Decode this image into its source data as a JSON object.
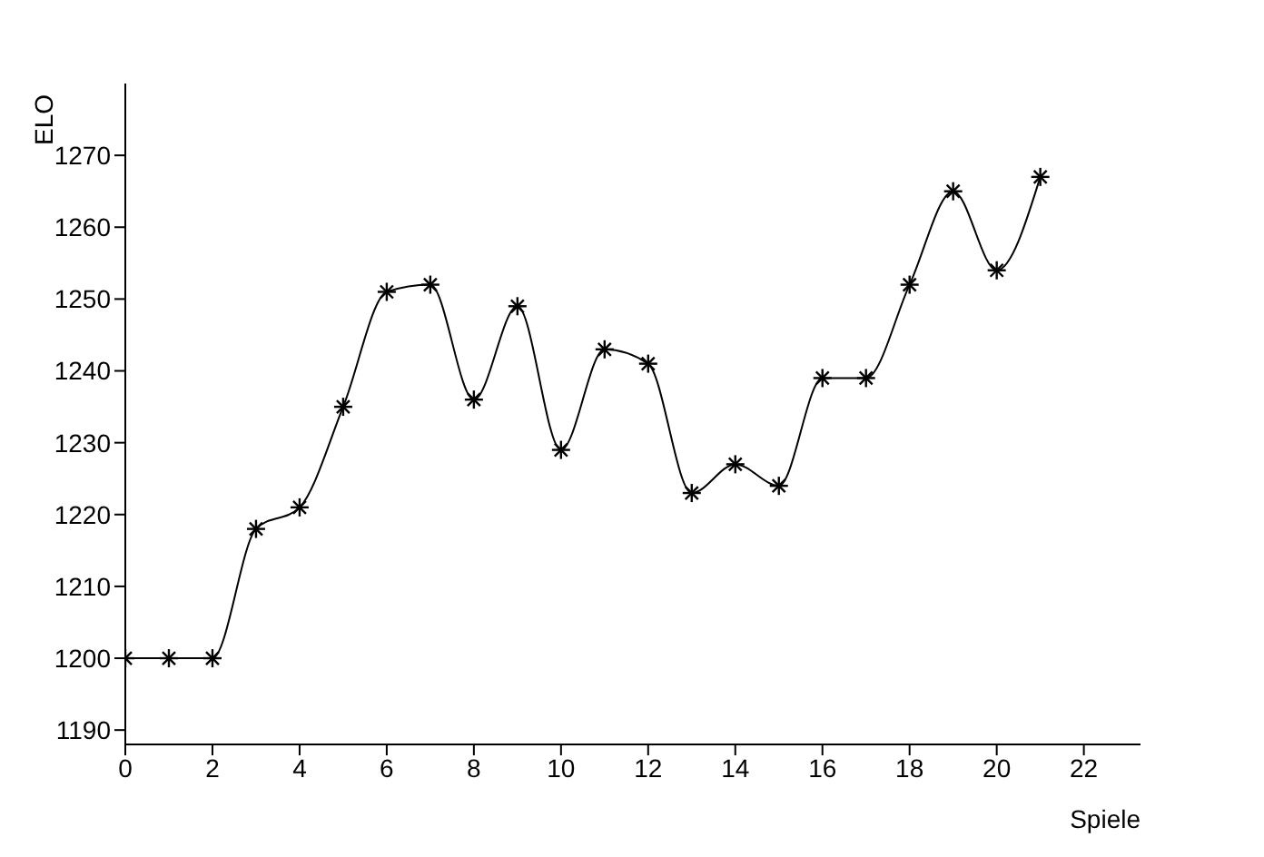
{
  "chart_data": {
    "type": "line",
    "xlabel": "Spiele",
    "ylabel": "ELO",
    "x": [
      0,
      1,
      2,
      3,
      4,
      5,
      6,
      7,
      8,
      9,
      10,
      11,
      12,
      13,
      14,
      15,
      16,
      17,
      18,
      19,
      20,
      21
    ],
    "series": [
      {
        "color": "#000000",
        "values": [
          1200,
          1200,
          1200,
          1218,
          1221,
          1235,
          1251,
          1252,
          1236,
          1249,
          1229,
          1243,
          1241,
          1223,
          1227,
          1224,
          1239,
          1239,
          1252,
          1265,
          1254,
          1267
        ]
      }
    ],
    "xlim": [
      0,
      23.3
    ],
    "xticks": [
      0,
      2,
      4,
      6,
      8,
      10,
      12,
      14,
      16,
      18,
      20,
      22
    ],
    "ylim": [
      1188,
      1280
    ],
    "yticks": [
      1190,
      1200,
      1210,
      1220,
      1230,
      1240,
      1250,
      1260,
      1270
    ],
    "marker": "cross",
    "line_style": "solid",
    "grid": false,
    "legend": false
  }
}
